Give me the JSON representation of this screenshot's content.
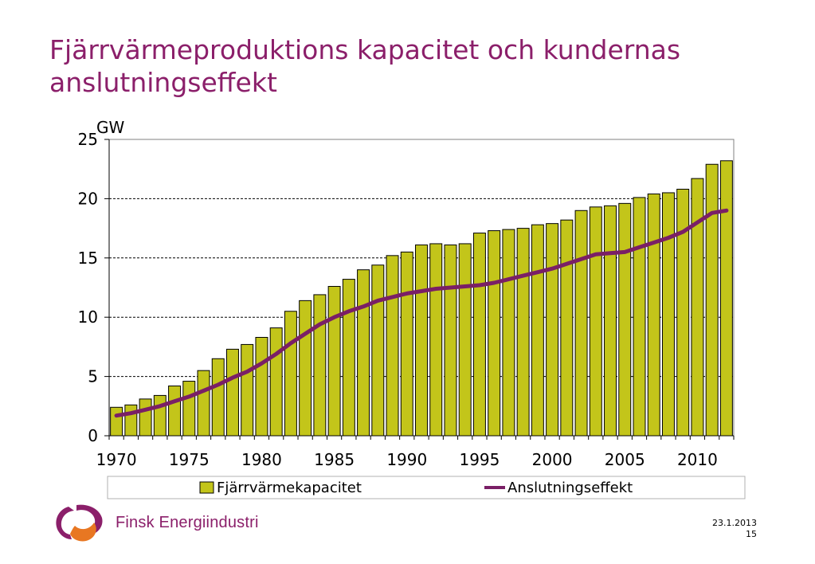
{
  "title": "Fjärrvärmeproduktions kapacitet och kundernas anslutningseffekt",
  "colors": {
    "title": "#8b1f6a",
    "bar_fill": "#c3c51a",
    "line": "#7a1f66",
    "brand": "#8b1f6a"
  },
  "chart_data": {
    "type": "bar",
    "unit_label": "GW",
    "x": [
      1970,
      1971,
      1972,
      1973,
      1974,
      1975,
      1976,
      1977,
      1978,
      1979,
      1980,
      1981,
      1982,
      1983,
      1984,
      1985,
      1986,
      1987,
      1988,
      1989,
      1990,
      1991,
      1992,
      1993,
      1994,
      1995,
      1996,
      1997,
      1998,
      1999,
      2000,
      2001,
      2002,
      2003,
      2004,
      2005,
      2006,
      2007,
      2008,
      2009,
      2010,
      2011,
      2012
    ],
    "x_ticks": [
      "1970",
      "1975",
      "1980",
      "1985",
      "1990",
      "1995",
      "2000",
      "2005",
      "2010"
    ],
    "y_ticks": [
      "0",
      "5",
      "10",
      "15",
      "20",
      "25"
    ],
    "ylim": [
      0,
      25
    ],
    "grid": "horizontal dashed",
    "legend_position": "bottom",
    "series": [
      {
        "name": "Fjärrvärmekapacitet",
        "kind": "bar",
        "values": [
          2.4,
          2.6,
          3.1,
          3.4,
          4.2,
          4.6,
          5.5,
          6.5,
          7.3,
          7.7,
          8.3,
          9.1,
          10.5,
          11.4,
          11.9,
          12.6,
          13.2,
          14.0,
          14.4,
          15.2,
          15.5,
          16.1,
          16.2,
          16.1,
          16.2,
          17.1,
          17.3,
          17.4,
          17.5,
          17.8,
          17.9,
          18.2,
          19.0,
          19.3,
          19.4,
          19.6,
          20.1,
          20.4,
          20.5,
          20.8,
          21.7,
          22.9,
          23.2
        ]
      },
      {
        "name": "Anslutningseffekt",
        "kind": "line",
        "values": [
          1.7,
          1.9,
          2.2,
          2.5,
          2.9,
          3.3,
          3.8,
          4.3,
          4.9,
          5.4,
          6.1,
          6.9,
          7.8,
          8.6,
          9.4,
          10.0,
          10.5,
          10.9,
          11.4,
          11.7,
          12.0,
          12.2,
          12.4,
          12.5,
          12.6,
          12.7,
          12.9,
          13.2,
          13.5,
          13.8,
          14.1,
          14.5,
          14.9,
          15.3,
          15.4,
          15.5,
          15.9,
          16.3,
          16.7,
          17.2,
          18.0,
          18.8,
          19.0
        ]
      }
    ]
  },
  "footer": {
    "brand": "Finsk Energiindustri",
    "date": "23.1.2013",
    "page": "15"
  }
}
